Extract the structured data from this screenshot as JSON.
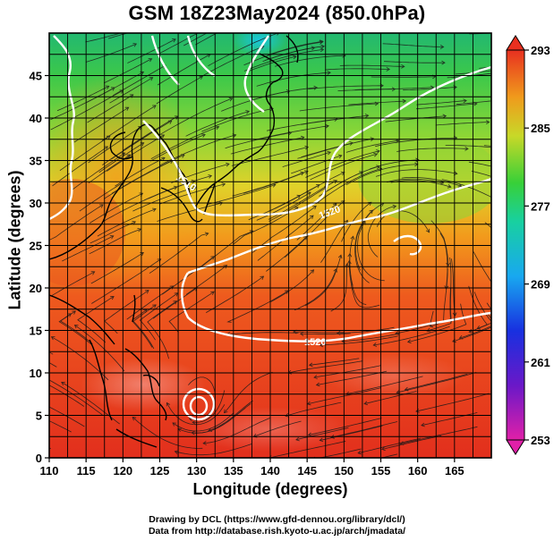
{
  "title": "GSM 18Z23May2024 (850.0hPa)",
  "x_axis": {
    "label": "Longitude (degrees)",
    "ticks": [
      "110",
      "115",
      "120",
      "125",
      "130",
      "135",
      "140",
      "145",
      "150",
      "155",
      "160",
      "165"
    ]
  },
  "y_axis": {
    "label": "Latitude  (degrees)",
    "ticks": [
      "0",
      "5",
      "10",
      "15",
      "20",
      "25",
      "30",
      "35",
      "40",
      "45"
    ]
  },
  "map_extent": {
    "lon": [
      110,
      170
    ],
    "lat": [
      0,
      50
    ]
  },
  "colorbar": {
    "ticks": [
      "293",
      "285",
      "277",
      "269",
      "261",
      "253"
    ]
  },
  "contour_labels": [
    "1510",
    "1520",
    "1520"
  ],
  "palette": {
    "hot": "#e8321e",
    "warm": "#f08a18",
    "mild": "#d8d828",
    "cool": "#5cd23a",
    "cold": "#18c8b0",
    "contour": "#ffffff",
    "coast": "#000000"
  },
  "credits": {
    "line1": "Drawing by DCL (https://www.gfd-dennou.org/library/dcl/)",
    "line2": "Data from http://database.rish.kyoto-u.ac.jp/arch/jmadata/"
  }
}
